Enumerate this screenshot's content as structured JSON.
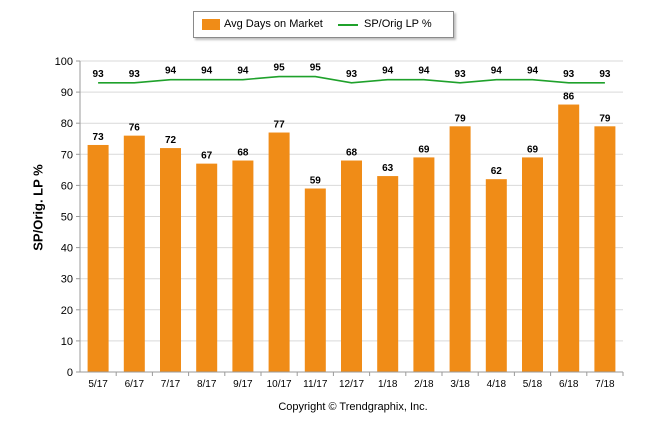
{
  "chart_data": {
    "type": "bar",
    "ylabel": "SP/Orig. LP %",
    "ylim": [
      0,
      100
    ],
    "yticks": [
      0,
      10,
      20,
      30,
      40,
      50,
      60,
      70,
      80,
      90,
      100
    ],
    "grid": true,
    "legend_position": "top-center",
    "categories": [
      "5/17",
      "6/17",
      "7/17",
      "8/17",
      "9/17",
      "10/17",
      "11/17",
      "12/17",
      "1/18",
      "2/18",
      "3/18",
      "4/18",
      "5/18",
      "6/18",
      "7/18"
    ],
    "series": [
      {
        "name": "Avg Days on Market",
        "type": "bar",
        "color": "#f08c17",
        "values": [
          73,
          76,
          72,
          67,
          68,
          77,
          59,
          68,
          63,
          69,
          79,
          62,
          69,
          86,
          79
        ]
      },
      {
        "name": "SP/Orig LP %",
        "type": "line",
        "color": "#1fa12b",
        "values": [
          93,
          93,
          94,
          94,
          94,
          95,
          95,
          93,
          94,
          94,
          93,
          94,
          94,
          93,
          93
        ]
      }
    ]
  },
  "footer": {
    "copyright": "Copyright © Trendgraphix, Inc."
  }
}
